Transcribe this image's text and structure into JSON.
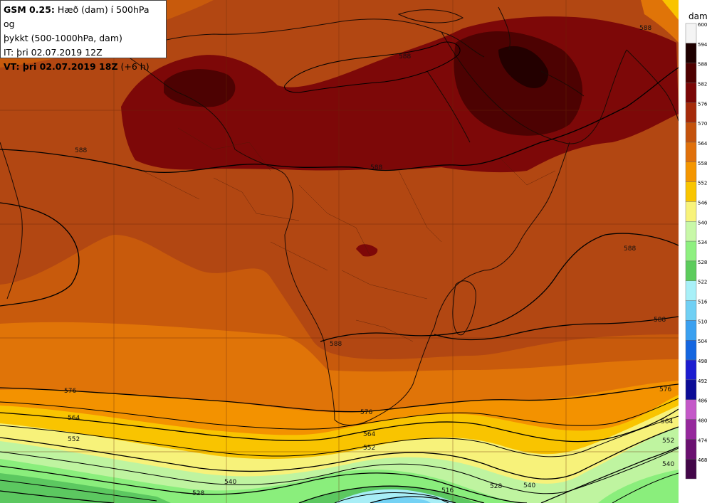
{
  "header": {
    "model": "GSM 0.25:",
    "title_line1": " Hæð (dam) í 500hPa og",
    "title_line2": "þykkt (500-1000hPa, dam)",
    "initial_time": "IT: þri 02.07.2019 12Z",
    "valid_prefix": "VT: þri 02.07.2019 18Z",
    "valid_suffix": " (+6 h)"
  },
  "legend": {
    "unit": "dam",
    "levels": [
      {
        "value": "600",
        "color": "#f4f4f4"
      },
      {
        "value": "594",
        "color": "#1e0000"
      },
      {
        "value": "588",
        "color": "#4e0000"
      },
      {
        "value": "582",
        "color": "#7a0606"
      },
      {
        "value": "576",
        "color": "#a52a0a"
      },
      {
        "value": "570",
        "color": "#c4520c"
      },
      {
        "value": "564",
        "color": "#e0700a"
      },
      {
        "value": "558",
        "color": "#f49600"
      },
      {
        "value": "552",
        "color": "#f9c500"
      },
      {
        "value": "546",
        "color": "#f8f37a"
      },
      {
        "value": "540",
        "color": "#c8f8a8"
      },
      {
        "value": "534",
        "color": "#8ef080"
      },
      {
        "value": "528",
        "color": "#5ccc5c"
      },
      {
        "value": "522",
        "color": "#a8f0f8"
      },
      {
        "value": "516",
        "color": "#70d0f4"
      },
      {
        "value": "510",
        "color": "#3aa0f0"
      },
      {
        "value": "504",
        "color": "#1466e0"
      },
      {
        "value": "498",
        "color": "#1c1cd0"
      },
      {
        "value": "492",
        "color": "#0c0c96"
      },
      {
        "value": "486",
        "color": "#c458c8"
      },
      {
        "value": "480",
        "color": "#96289c"
      },
      {
        "value": "474",
        "color": "#6a1070"
      },
      {
        "value": "468",
        "color": "#420648"
      }
    ]
  },
  "contour_labels": {
    "c588_a": "588",
    "c588_b": "588",
    "c588_c": "588",
    "c588_d": "588",
    "c588_e": "588",
    "c588_f": "588",
    "c588_g": "588",
    "c576_a": "576",
    "c576_b": "576",
    "c576_c": "576",
    "c564_a": "564",
    "c564_b": "564",
    "c564_c": "564",
    "c552_a": "552",
    "c552_b": "552",
    "c552_c": "552",
    "c540_a": "540",
    "c540_b": "540",
    "c540_c": "540",
    "c528_a": "528",
    "c528_b": "528",
    "c516_a": "516"
  }
}
